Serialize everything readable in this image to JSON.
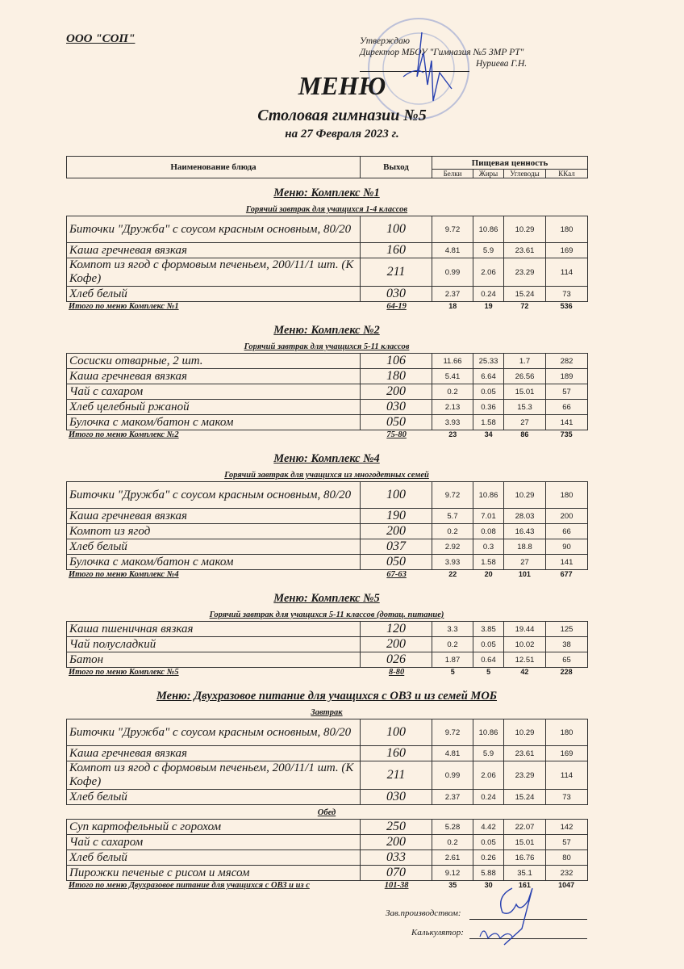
{
  "organization": "ООО \"СОП\"",
  "approval": {
    "line1": "Утверждаю",
    "line2": "Директор МБОУ \"Гимназия №5 ЗМР РТ\"",
    "name": "Нуриева Г.Н."
  },
  "title": "МЕНЮ",
  "subtitle": "Столовая гимназии №5",
  "date": "на 27 Февраля 2023 г.",
  "stamp_color": "#6f86c9",
  "signature_color": "#2740b0",
  "header": {
    "name": "Наименование блюда",
    "output": "Выход",
    "nutrition": "Пищевая ценность",
    "cols": [
      "Белки",
      "Жиры",
      "Углеводы",
      "ККал"
    ]
  },
  "sections": [
    {
      "title": "Меню: Комплекс №1",
      "groups": [
        {
          "label": "Горячий завтрак для учащихся 1-4 классов",
          "rows": [
            {
              "name": "Биточки  \"Дружба\" с соусом красным основным, 80/20",
              "output": "100",
              "values": [
                "9.72",
                "10.86",
                "10.29",
                "180"
              ],
              "tall": true
            },
            {
              "name": "Каша гречневая вязкая",
              "output": "160",
              "values": [
                "4.81",
                "5.9",
                "23.61",
                "169"
              ]
            },
            {
              "name": "Компот из ягод с формовым печеньем, 200/11/1 шт. (К Кофе)",
              "output": "211",
              "values": [
                "0.99",
                "2.06",
                "23.29",
                "114"
              ],
              "tall": true
            },
            {
              "name": "Хлеб белый",
              "output": "030",
              "values": [
                "2.37",
                "0.24",
                "15.24",
                "73"
              ]
            }
          ]
        }
      ],
      "total": {
        "label": "Итого по меню Комплекс №1",
        "output": "64-19",
        "values": [
          "18",
          "19",
          "72",
          "536"
        ]
      }
    },
    {
      "title": "Меню: Комплекс №2",
      "groups": [
        {
          "label": "Горячий завтрак для учащихся 5-11 классов",
          "rows": [
            {
              "name": "Сосиски  отварные, 2 шт.",
              "output": "106",
              "values": [
                "11.66",
                "25.33",
                "1.7",
                "282"
              ]
            },
            {
              "name": "Каша гречневая вязкая",
              "output": "180",
              "values": [
                "5.41",
                "6.64",
                "26.56",
                "189"
              ]
            },
            {
              "name": "Чай с сахаром",
              "output": "200",
              "values": [
                "0.2",
                "0.05",
                "15.01",
                "57"
              ]
            },
            {
              "name": "Хлеб  целебный ржаной",
              "output": "030",
              "values": [
                "2.13",
                "0.36",
                "15.3",
                "66"
              ]
            },
            {
              "name": "Булочка с маком/батон с маком",
              "output": "050",
              "values": [
                "3.93",
                "1.58",
                "27",
                "141"
              ]
            }
          ]
        }
      ],
      "total": {
        "label": "Итого по меню Комплекс №2",
        "output": "75-80",
        "values": [
          "23",
          "34",
          "86",
          "735"
        ]
      }
    },
    {
      "title": "Меню: Комплекс №4",
      "groups": [
        {
          "label": "Горячий завтрак для учащихся из многодетных семей",
          "rows": [
            {
              "name": "Биточки  \"Дружба\" с соусом красным основным, 80/20",
              "output": "100",
              "values": [
                "9.72",
                "10.86",
                "10.29",
                "180"
              ],
              "tall": true
            },
            {
              "name": "Каша гречневая вязкая",
              "output": "190",
              "values": [
                "5.7",
                "7.01",
                "28.03",
                "200"
              ]
            },
            {
              "name": "Компот из  ягод",
              "output": "200",
              "values": [
                "0.2",
                "0.08",
                "16.43",
                "66"
              ]
            },
            {
              "name": "Хлеб белый",
              "output": "037",
              "values": [
                "2.92",
                "0.3",
                "18.8",
                "90"
              ]
            },
            {
              "name": "Булочка с маком/батон с маком",
              "output": "050",
              "values": [
                "3.93",
                "1.58",
                "27",
                "141"
              ]
            }
          ]
        }
      ],
      "total": {
        "label": "Итого по меню Комплекс №4",
        "output": "67-63",
        "values": [
          "22",
          "20",
          "101",
          "677"
        ]
      }
    },
    {
      "title": "Меню: Комплекс №5",
      "groups": [
        {
          "label": "Горячий завтрак для учащихся 5-11 классов (дотац. питание)",
          "rows": [
            {
              "name": "Каша пшеничная вязкая",
              "output": "120",
              "values": [
                "3.3",
                "3.85",
                "19.44",
                "125"
              ]
            },
            {
              "name": "Чай полусладкий",
              "output": "200",
              "values": [
                "0.2",
                "0.05",
                "10.02",
                "38"
              ]
            },
            {
              "name": "Батон",
              "output": "026",
              "values": [
                "1.87",
                "0.64",
                "12.51",
                "65"
              ]
            }
          ]
        }
      ],
      "total": {
        "label": "Итого по меню Комплекс №5",
        "output": "8-80",
        "values": [
          "5",
          "5",
          "42",
          "228"
        ]
      }
    },
    {
      "title": "Меню: Двухразовое питание для учащихся с ОВЗ и из семей МОБ",
      "groups": [
        {
          "label": "Завтрак",
          "rows": [
            {
              "name": "Биточки  \"Дружба\" с соусом красным основным, 80/20",
              "output": "100",
              "values": [
                "9.72",
                "10.86",
                "10.29",
                "180"
              ],
              "tall": true
            },
            {
              "name": "Каша гречневая вязкая",
              "output": "160",
              "values": [
                "4.81",
                "5.9",
                "23.61",
                "169"
              ]
            },
            {
              "name": "Компот из ягод с формовым печеньем, 200/11/1 шт. (К Кофе)",
              "output": "211",
              "values": [
                "0.99",
                "2.06",
                "23.29",
                "114"
              ],
              "tall": true
            },
            {
              "name": "Хлеб белый",
              "output": "030",
              "values": [
                "2.37",
                "0.24",
                "15.24",
                "73"
              ]
            }
          ]
        },
        {
          "label": "Обед",
          "rows": [
            {
              "name": "Суп картофельный с горохом",
              "output": "250",
              "values": [
                "5.28",
                "4.42",
                "22.07",
                "142"
              ]
            },
            {
              "name": "Чай с сахаром",
              "output": "200",
              "values": [
                "0.2",
                "0.05",
                "15.01",
                "57"
              ]
            },
            {
              "name": "Хлеб белый",
              "output": "033",
              "values": [
                "2.61",
                "0.26",
                "16.76",
                "80"
              ]
            },
            {
              "name": "Пирожки печеные с рисом и мясом",
              "output": "070",
              "values": [
                "9.12",
                "5.88",
                "35.1",
                "232"
              ]
            }
          ]
        }
      ],
      "total": {
        "label": "Итого по меню Двухразовое питание для учащихся с ОВЗ и из с",
        "output": "101-38",
        "values": [
          "35",
          "30",
          "161",
          "1047"
        ]
      }
    }
  ],
  "signatures": {
    "production_head": "Зав.производством:",
    "calculator": "Калькулятор:"
  }
}
